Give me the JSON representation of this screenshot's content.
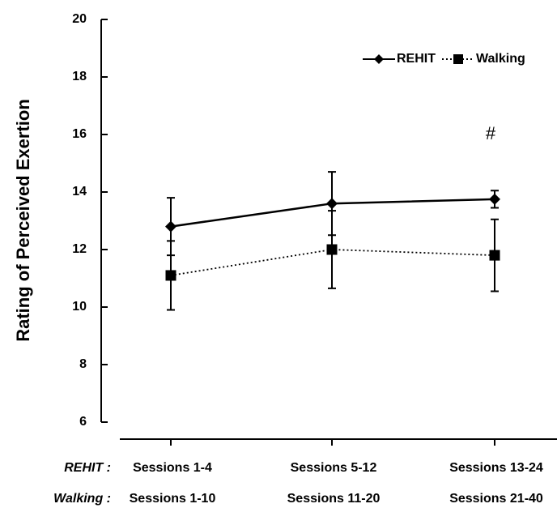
{
  "chart_data": {
    "type": "line",
    "ylabel": "Rating of Perceived Exertion",
    "category_rows": [
      {
        "label": "REHIT :",
        "categories": [
          "Sessions 1-4",
          "Sessions 5-12",
          "Sessions 13-24"
        ]
      },
      {
        "label": "Walking :",
        "categories": [
          "Sessions 1-10",
          "Sessions 11-20",
          "Sessions 21-40"
        ]
      }
    ],
    "series": [
      {
        "name": "REHIT",
        "color": "#000000",
        "marker": "diamond",
        "dash": "solid",
        "values": [
          12.8,
          13.6,
          13.75
        ],
        "errors": [
          1.0,
          1.1,
          0.3
        ]
      },
      {
        "name": "Walking",
        "color": "#000000",
        "marker": "square",
        "dash": "dotted",
        "values": [
          11.1,
          12.0,
          11.8
        ],
        "errors": [
          1.2,
          1.35,
          1.25
        ]
      }
    ],
    "annotations": [
      {
        "text": "#",
        "category": 2,
        "y": 16.0
      }
    ],
    "ylim": [
      6,
      20
    ],
    "yticks": [
      6,
      8,
      10,
      12,
      14,
      16,
      18,
      20
    ],
    "legend": "top-right",
    "grid": false
  }
}
